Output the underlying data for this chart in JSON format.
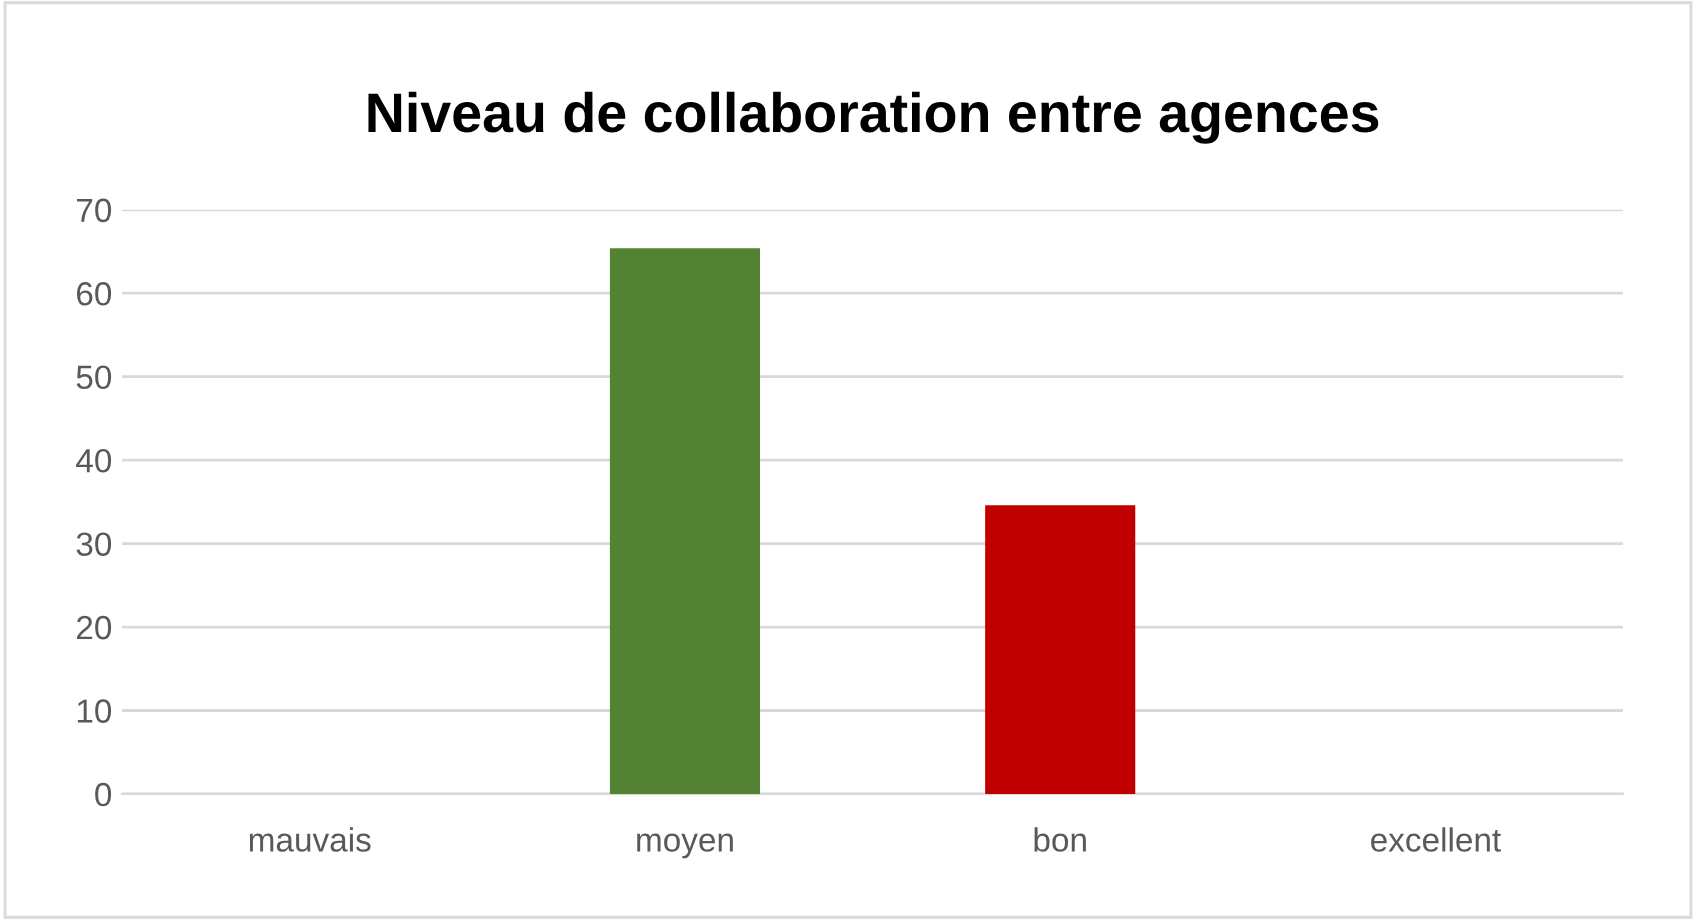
{
  "chart_data": {
    "type": "bar",
    "title": "Niveau de collaboration entre agences",
    "categories": [
      "mauvais",
      "moyen",
      "bon",
      "excellent"
    ],
    "values": [
      0,
      65.4,
      34.6,
      0
    ],
    "colors": [
      "#548235",
      "#548235",
      "#c00000",
      "#c00000"
    ],
    "ylim": [
      0,
      70
    ],
    "yticks": [
      0,
      10,
      20,
      30,
      40,
      50,
      60,
      70
    ],
    "grid": "y",
    "legend": false
  }
}
